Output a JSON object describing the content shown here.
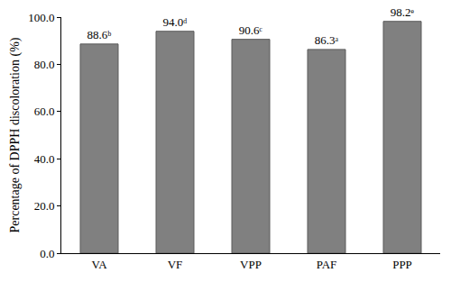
{
  "chart_data": {
    "type": "bar",
    "y_label": "Percentage of DPPH discoloration (%)",
    "categories": [
      "VA",
      "VF",
      "VPP",
      "PAF",
      "PPP"
    ],
    "values": [
      88.6,
      94.0,
      90.6,
      86.3,
      98.2
    ],
    "value_labels": [
      "88.6ᵇ",
      "94.0ᵈ",
      "90.6ᶜ",
      "86.3ᵃ",
      "98.2ᵉ"
    ],
    "color": "#808080",
    "ylim": [
      0,
      100
    ],
    "yticks": [
      {
        "value": 0,
        "label": "0.0"
      },
      {
        "value": 20,
        "label": "20.0"
      },
      {
        "value": 40,
        "label": "40.0"
      },
      {
        "value": 60,
        "label": "60.0"
      },
      {
        "value": 80,
        "label": "80.0"
      },
      {
        "value": 100,
        "label": "100.0"
      }
    ],
    "grid": false,
    "data_labels": true
  }
}
